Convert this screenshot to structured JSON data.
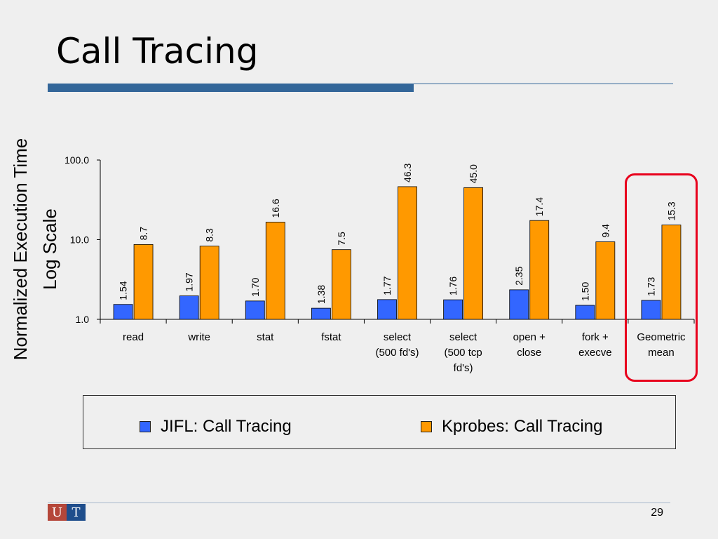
{
  "slide": {
    "title": "Call Tracing",
    "page_number": "29",
    "logo": {
      "left": "U",
      "right": "T",
      "mark": "of"
    }
  },
  "colors": {
    "jifl": "#3366ff",
    "kprobes": "#ff9900",
    "highlight": "#e8001c",
    "title_bar": "#336699"
  },
  "chart_data": {
    "type": "bar",
    "scale": "log",
    "ylabel": [
      "Normalized Execution Time",
      "Log Scale"
    ],
    "xlabel": "",
    "ylim": [
      1.0,
      100.0
    ],
    "yticks": [
      "1.0",
      "10.0",
      "100.0"
    ],
    "categories": [
      [
        "read"
      ],
      [
        "write"
      ],
      [
        "stat"
      ],
      [
        "fstat"
      ],
      [
        "select",
        "(500 fd's)"
      ],
      [
        "select",
        "(500 tcp",
        "fd's)"
      ],
      [
        "open +",
        "close"
      ],
      [
        "fork +",
        "execve"
      ],
      [
        "Geometric",
        "mean"
      ]
    ],
    "series": [
      {
        "name": "JIFL: Call Tracing",
        "color": "#3366ff",
        "values": [
          1.54,
          1.97,
          1.7,
          1.38,
          1.77,
          1.76,
          2.35,
          1.5,
          1.73
        ],
        "labels": [
          "1.54",
          "1.97",
          "1.70",
          "1.38",
          "1.77",
          "1.76",
          "2.35",
          "1.50",
          "1.73"
        ]
      },
      {
        "name": "Kprobes: Call Tracing",
        "color": "#ff9900",
        "values": [
          8.7,
          8.3,
          16.6,
          7.5,
          46.3,
          45.0,
          17.4,
          9.4,
          15.3
        ],
        "labels": [
          "8.7",
          "8.3",
          "16.6",
          "7.5",
          "46.3",
          "45.0",
          "17.4",
          "9.4",
          "15.3"
        ]
      }
    ],
    "grid": false,
    "legend": "bottom"
  }
}
